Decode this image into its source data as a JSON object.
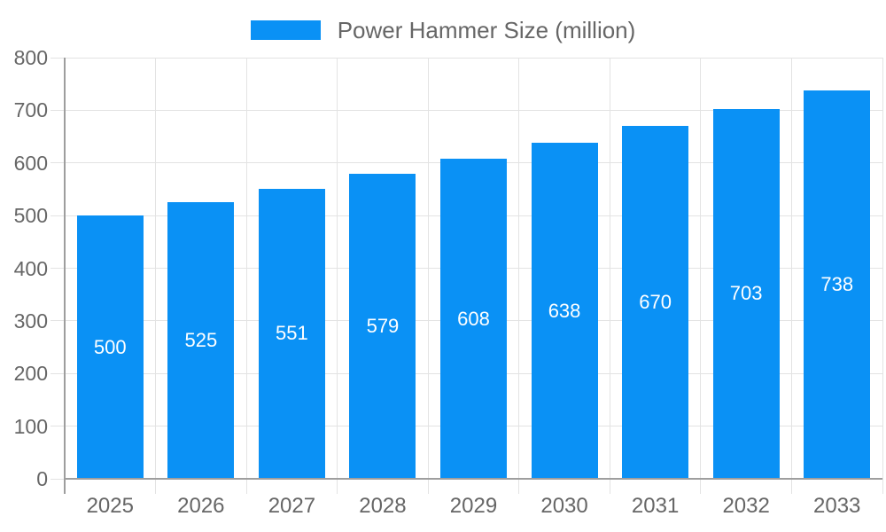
{
  "chart_data": {
    "type": "bar",
    "title": "",
    "legend_label": "Power Hammer Size (million)",
    "legend_position": "top-center",
    "categories": [
      "2025",
      "2026",
      "2027",
      "2028",
      "2029",
      "2030",
      "2031",
      "2032",
      "2033"
    ],
    "values": [
      500,
      525,
      551,
      579,
      608,
      638,
      670,
      703,
      738
    ],
    "value_labels_shown_inside_bars": true,
    "xlabel": "",
    "ylabel": "",
    "ylim": [
      0,
      800
    ],
    "yticks": [
      0,
      100,
      200,
      300,
      400,
      500,
      600,
      700,
      800
    ],
    "grid": "horizontal-and-vertical",
    "colors": {
      "bar": "#0a91f5",
      "grid_line": "#e3e3e3",
      "axis_line": "#9e9e9e",
      "tick_label": "#666666",
      "legend_text": "#666666",
      "bar_label": "#ffffff",
      "background": "#ffffff"
    }
  }
}
